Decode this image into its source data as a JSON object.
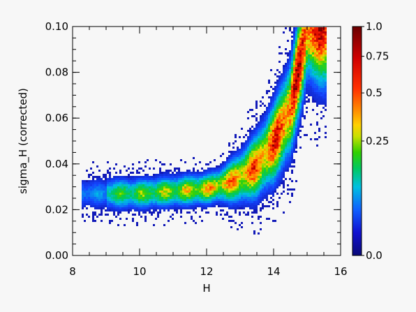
{
  "chart_data": {
    "type": "heatmap",
    "title": "",
    "xlabel": "H",
    "ylabel": "sigma_H (corrected)",
    "xlim": [
      8,
      16
    ],
    "ylim": [
      0.0,
      0.1
    ],
    "x_ticks": [
      8,
      10,
      12,
      14,
      16
    ],
    "x_tick_labels": [
      "8",
      "10",
      "12",
      "14",
      "16"
    ],
    "y_ticks": [
      0.0,
      0.02,
      0.04,
      0.06,
      0.08,
      0.1
    ],
    "y_tick_labels": [
      "0.00",
      "0.02",
      "0.04",
      "0.06",
      "0.08",
      "0.10"
    ],
    "colorbar": {
      "ticks": [
        0.0,
        0.25,
        0.5,
        0.75,
        1.0
      ],
      "tick_labels": [
        "0.0",
        "0.25",
        "0.5",
        "0.75",
        "1.0"
      ],
      "scale": "nonlinear (stretched toward low values)",
      "colormap": "rainbow (dark blue -> blue -> cyan -> green -> yellow -> orange -> red -> dark red)"
    },
    "ridge": {
      "description": "Approximate density ridge of sigma_H versus H",
      "x": [
        8.3,
        9.0,
        10.0,
        11.0,
        12.0,
        12.5,
        13.0,
        13.5,
        14.0,
        14.5,
        15.0
      ],
      "y": [
        0.027,
        0.027,
        0.027,
        0.028,
        0.029,
        0.031,
        0.034,
        0.039,
        0.049,
        0.064,
        0.1
      ]
    },
    "peak_density_region": {
      "x": [
        13.5,
        15.2
      ],
      "y": [
        0.035,
        0.1
      ]
    }
  }
}
